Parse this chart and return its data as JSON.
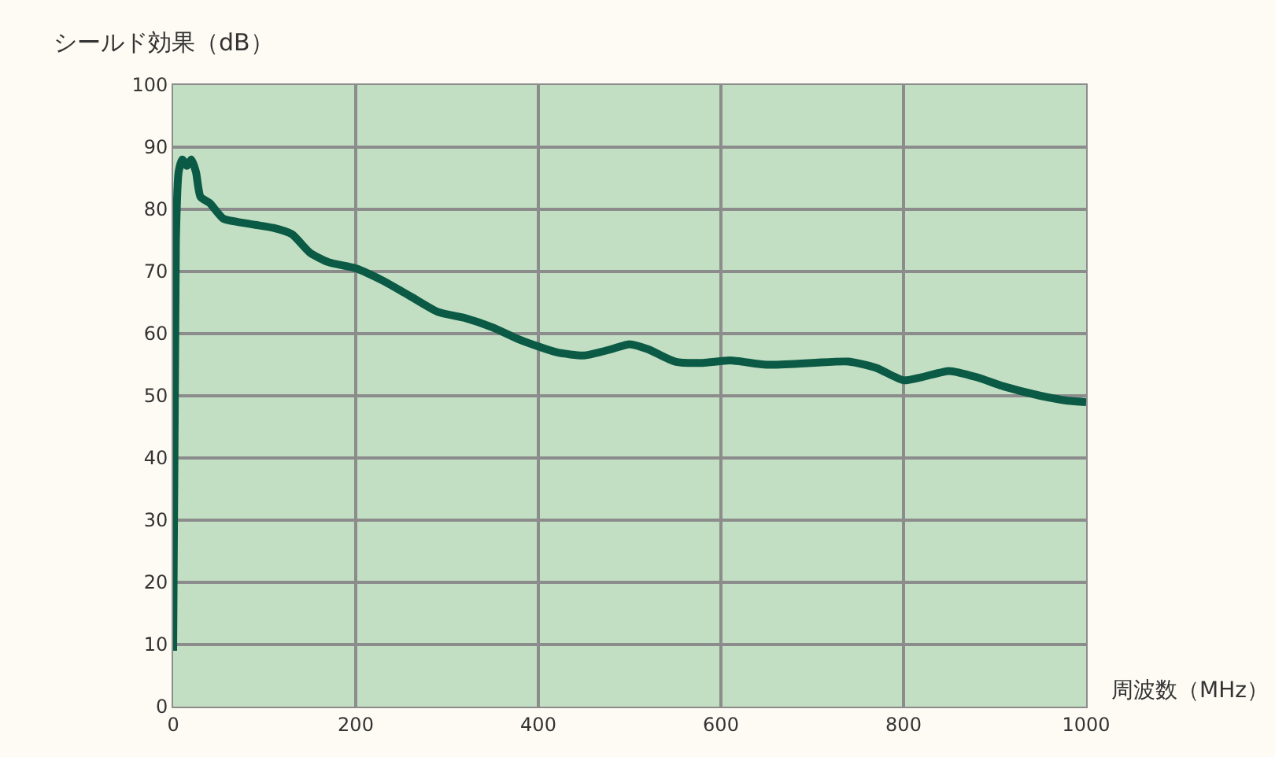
{
  "chart_data": {
    "type": "line",
    "ylabel": "シールド効果（dB）",
    "xlabel": "周波数（MHz）",
    "x": [
      0,
      3,
      6,
      10,
      15,
      20,
      25,
      30,
      40,
      55,
      70,
      90,
      110,
      130,
      150,
      170,
      200,
      230,
      260,
      290,
      320,
      350,
      380,
      420,
      450,
      480,
      500,
      520,
      550,
      580,
      610,
      650,
      700,
      740,
      770,
      800,
      820,
      850,
      880,
      910,
      950,
      980,
      1000
    ],
    "series": [
      {
        "color": "#0b5a45",
        "values": [
          9,
          75,
          86,
          88,
          87,
          88,
          86,
          82,
          81,
          78.5,
          78,
          77.5,
          77,
          76,
          73,
          71.5,
          70.5,
          68.5,
          66,
          63.5,
          62.5,
          61,
          59,
          57,
          56.5,
          57.5,
          58.3,
          57.5,
          55.5,
          55.3,
          55.7,
          55,
          55.3,
          55.5,
          54.5,
          52.5,
          53,
          54,
          53,
          51.5,
          50,
          49.2,
          49
        ]
      }
    ],
    "xlim": [
      0,
      1000
    ],
    "xticks": [
      0,
      200,
      400,
      600,
      800,
      1000
    ],
    "ylim": [
      0,
      100
    ],
    "yticks": [
      0,
      10,
      20,
      30,
      40,
      50,
      60,
      70,
      80,
      90,
      100
    ],
    "grid": true,
    "marker": "none",
    "line_style": "solid"
  }
}
